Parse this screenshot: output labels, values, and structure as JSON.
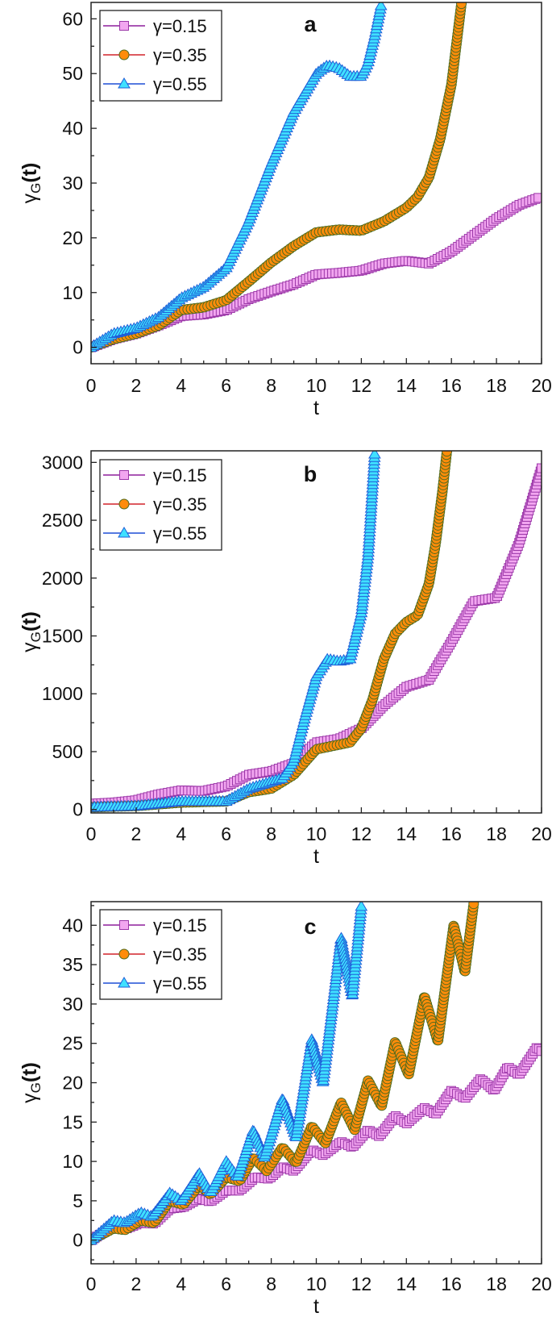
{
  "chart_data": [
    {
      "type": "line",
      "panel_label": "a",
      "xlabel": "t",
      "ylabel": {
        "main": "γ",
        "sub": "G",
        "suffix": "(t)"
      },
      "xlim": [
        0,
        20
      ],
      "ylim": [
        -3,
        63
      ],
      "xticks": [
        0,
        2,
        4,
        6,
        8,
        10,
        12,
        14,
        16,
        18,
        20
      ],
      "yticks": [
        0,
        10,
        20,
        30,
        40,
        50,
        60
      ],
      "yminor_step": 5,
      "grid": false,
      "legend_position": "top-left",
      "series": [
        {
          "name": "γ=0.15",
          "marker": "square",
          "line_color": "#8e1f9c",
          "marker_fill": "#f2a6f0",
          "marker_edge": "#9b37a8",
          "points": [
            [
              0,
              0
            ],
            [
              1,
              1.5
            ],
            [
              2,
              2.5
            ],
            [
              3,
              4
            ],
            [
              4,
              5.7
            ],
            [
              5,
              6
            ],
            [
              6,
              6.8
            ],
            [
              7,
              8.8
            ],
            [
              8,
              10.2
            ],
            [
              9,
              11.5
            ],
            [
              10,
              13.3
            ],
            [
              11,
              13.6
            ],
            [
              12,
              14
            ],
            [
              13,
              15.3
            ],
            [
              14,
              15.8
            ],
            [
              15,
              15.3
            ],
            [
              16,
              17.5
            ],
            [
              17,
              20.5
            ],
            [
              18,
              23.5
            ],
            [
              19,
              26
            ],
            [
              20,
              27.5
            ]
          ]
        },
        {
          "name": "γ=0.35",
          "marker": "circle",
          "line_color": "#d2232a",
          "marker_fill": "#ff8c0a",
          "marker_edge": "#4f6b1e",
          "points": [
            [
              0,
              0
            ],
            [
              1,
              1.5
            ],
            [
              2,
              2.5
            ],
            [
              3,
              4
            ],
            [
              4,
              6.8
            ],
            [
              5,
              7.3
            ],
            [
              6,
              8.6
            ],
            [
              7,
              12
            ],
            [
              8,
              15.5
            ],
            [
              9,
              18.5
            ],
            [
              10,
              21
            ],
            [
              11,
              21.5
            ],
            [
              12,
              21.3
            ],
            [
              13,
              23
            ],
            [
              14,
              25.5
            ],
            [
              14.5,
              27.5
            ],
            [
              15,
              31
            ],
            [
              15.5,
              38
            ],
            [
              16,
              48
            ],
            [
              16.3,
              58
            ],
            [
              16.45,
              63
            ]
          ]
        },
        {
          "name": "γ=0.55",
          "marker": "triangle",
          "line_color": "#1e4fd6",
          "marker_fill": "#3fe0ff",
          "marker_edge": "#1f5fd8",
          "points": [
            [
              0,
              0
            ],
            [
              1,
              2.5
            ],
            [
              2,
              3.5
            ],
            [
              3,
              5.5
            ],
            [
              4,
              9
            ],
            [
              5,
              11
            ],
            [
              6,
              14.5
            ],
            [
              7,
              23
            ],
            [
              8,
              33.5
            ],
            [
              9,
              43
            ],
            [
              10,
              50
            ],
            [
              10.5,
              51.5
            ],
            [
              11,
              51
            ],
            [
              11.5,
              49.5
            ],
            [
              12,
              49.5
            ],
            [
              12.3,
              52
            ],
            [
              12.6,
              57
            ],
            [
              12.9,
              63
            ]
          ]
        }
      ]
    },
    {
      "type": "line",
      "panel_label": "b",
      "xlabel": "t",
      "ylabel": {
        "main": "γ",
        "sub": "G",
        "suffix": "(t)"
      },
      "xlim": [
        0,
        20
      ],
      "ylim": [
        -30,
        3100
      ],
      "xticks": [
        0,
        2,
        4,
        6,
        8,
        10,
        12,
        14,
        16,
        18,
        20
      ],
      "yticks": [
        0,
        500,
        1000,
        1500,
        2000,
        2500,
        3000
      ],
      "yminor_step": 250,
      "grid": false,
      "legend_position": "top-left",
      "series": [
        {
          "name": "γ=0.15",
          "marker": "square",
          "line_color": "#8e1f9c",
          "marker_fill": "#f2a6f0",
          "marker_edge": "#9b37a8",
          "points": [
            [
              0,
              50
            ],
            [
              1,
              60
            ],
            [
              2,
              80
            ],
            [
              3,
              130
            ],
            [
              4,
              165
            ],
            [
              5,
              160
            ],
            [
              6,
              200
            ],
            [
              7,
              300
            ],
            [
              8,
              330
            ],
            [
              9,
              400
            ],
            [
              10,
              580
            ],
            [
              11,
              610
            ],
            [
              12,
              700
            ],
            [
              13,
              900
            ],
            [
              14,
              1060
            ],
            [
              15,
              1120
            ],
            [
              16,
              1450
            ],
            [
              17,
              1800
            ],
            [
              18,
              1830
            ],
            [
              19,
              2300
            ],
            [
              20,
              2950
            ]
          ]
        },
        {
          "name": "γ=0.35",
          "marker": "circle",
          "line_color": "#d2232a",
          "marker_fill": "#ff8c0a",
          "marker_edge": "#4f6b1e",
          "points": [
            [
              0,
              20
            ],
            [
              2,
              30
            ],
            [
              4,
              60
            ],
            [
              6,
              70
            ],
            [
              7,
              150
            ],
            [
              8,
              180
            ],
            [
              9,
              300
            ],
            [
              10,
              520
            ],
            [
              11,
              560
            ],
            [
              11.5,
              580
            ],
            [
              12,
              700
            ],
            [
              12.5,
              950
            ],
            [
              13,
              1300
            ],
            [
              13.5,
              1520
            ],
            [
              14,
              1620
            ],
            [
              14.5,
              1680
            ],
            [
              15,
              1950
            ],
            [
              15.3,
              2300
            ],
            [
              15.6,
              2750
            ],
            [
              15.8,
              3100
            ]
          ]
        },
        {
          "name": "γ=0.55",
          "marker": "triangle",
          "line_color": "#1e4fd6",
          "marker_fill": "#3fe0ff",
          "marker_edge": "#1f5fd8",
          "points": [
            [
              0,
              20
            ],
            [
              2,
              30
            ],
            [
              4,
              70
            ],
            [
              6,
              70
            ],
            [
              7,
              180
            ],
            [
              8,
              240
            ],
            [
              8.5,
              270
            ],
            [
              9,
              420
            ],
            [
              9.5,
              800
            ],
            [
              10,
              1150
            ],
            [
              10.5,
              1300
            ],
            [
              11,
              1280
            ],
            [
              11.5,
              1300
            ],
            [
              12,
              1700
            ],
            [
              12.3,
              2200
            ],
            [
              12.6,
              3100
            ]
          ]
        }
      ]
    },
    {
      "type": "line",
      "panel_label": "c",
      "xlabel": "t",
      "ylabel": {
        "main": "γ",
        "sub": "G",
        "suffix": "(t)"
      },
      "xlim": [
        0,
        20
      ],
      "ylim": [
        -3,
        43
      ],
      "xticks": [
        0,
        2,
        4,
        6,
        8,
        10,
        12,
        14,
        16,
        18,
        20
      ],
      "yticks": [
        0,
        5,
        10,
        15,
        20,
        25,
        30,
        35,
        40
      ],
      "yminor_step": 2.5,
      "grid": false,
      "legend_position": "top-left",
      "series": [
        {
          "name": "γ=0.15",
          "marker": "square",
          "line_color": "#8e1f9c",
          "marker_fill": "#f2a6f0",
          "marker_edge": "#9b37a8",
          "points": [
            [
              0,
              0
            ],
            [
              1,
              1.8
            ],
            [
              1.5,
              1.4
            ],
            [
              2.2,
              2.2
            ],
            [
              2.8,
              2.1
            ],
            [
              3.5,
              4
            ],
            [
              4.1,
              4.2
            ],
            [
              4.8,
              5.3
            ],
            [
              5.3,
              4.9
            ],
            [
              6,
              6.3
            ],
            [
              6.6,
              6.3
            ],
            [
              7.3,
              8
            ],
            [
              7.9,
              7.8
            ],
            [
              8.5,
              9.3
            ],
            [
              9,
              8.8
            ],
            [
              9.8,
              11.5
            ],
            [
              10.3,
              10.8
            ],
            [
              11.1,
              12.5
            ],
            [
              11.6,
              11.8
            ],
            [
              12.3,
              14
            ],
            [
              12.8,
              13.2
            ],
            [
              13.5,
              15.8
            ],
            [
              14,
              14.8
            ],
            [
              14.8,
              16.8
            ],
            [
              15.3,
              16
            ],
            [
              16,
              19
            ],
            [
              16.6,
              18
            ],
            [
              17.3,
              20.5
            ],
            [
              17.9,
              19
            ],
            [
              18.5,
              22
            ],
            [
              19,
              21
            ],
            [
              19.8,
              24.5
            ],
            [
              20,
              24
            ]
          ]
        },
        {
          "name": "γ=0.35",
          "marker": "circle",
          "line_color": "#d2232a",
          "marker_fill": "#ff8c0a",
          "marker_edge": "#4f6b1e",
          "points": [
            [
              0,
              0
            ],
            [
              1,
              1.5
            ],
            [
              1.5,
              1.3
            ],
            [
              2.2,
              2.5
            ],
            [
              2.8,
              2.2
            ],
            [
              3.5,
              5
            ],
            [
              4.1,
              4.5
            ],
            [
              4.8,
              7
            ],
            [
              5.3,
              5.8
            ],
            [
              6,
              8
            ],
            [
              6.6,
              7.5
            ],
            [
              7.2,
              10.5
            ],
            [
              7.8,
              8.8
            ],
            [
              8.5,
              11.8
            ],
            [
              9.1,
              9.8
            ],
            [
              9.8,
              14.5
            ],
            [
              10.4,
              12.3
            ],
            [
              11.1,
              17.5
            ],
            [
              11.7,
              14
            ],
            [
              12.3,
              20.3
            ],
            [
              12.9,
              17
            ],
            [
              13.5,
              25.2
            ],
            [
              14.1,
              21
            ],
            [
              14.8,
              31
            ],
            [
              15.4,
              25.2
            ],
            [
              16.1,
              40
            ],
            [
              16.6,
              34
            ],
            [
              17,
              43
            ]
          ]
        },
        {
          "name": "γ=0.55",
          "marker": "triangle",
          "line_color": "#1e4fd6",
          "marker_fill": "#3fe0ff",
          "marker_edge": "#1f5fd8",
          "points": [
            [
              0,
              0
            ],
            [
              1,
              2.5
            ],
            [
              1.5,
              2.2
            ],
            [
              2.2,
              3.5
            ],
            [
              2.7,
              3
            ],
            [
              3.5,
              6
            ],
            [
              4,
              5
            ],
            [
              4.8,
              8.5
            ],
            [
              5.3,
              6
            ],
            [
              6,
              10
            ],
            [
              6.5,
              8
            ],
            [
              7.2,
              14
            ],
            [
              7.7,
              10.5
            ],
            [
              8.5,
              18
            ],
            [
              9.1,
              13
            ],
            [
              9.8,
              25.5
            ],
            [
              10.3,
              20
            ],
            [
              11.1,
              38.5
            ],
            [
              11.6,
              31
            ],
            [
              12,
              42.5
            ]
          ]
        }
      ]
    }
  ]
}
